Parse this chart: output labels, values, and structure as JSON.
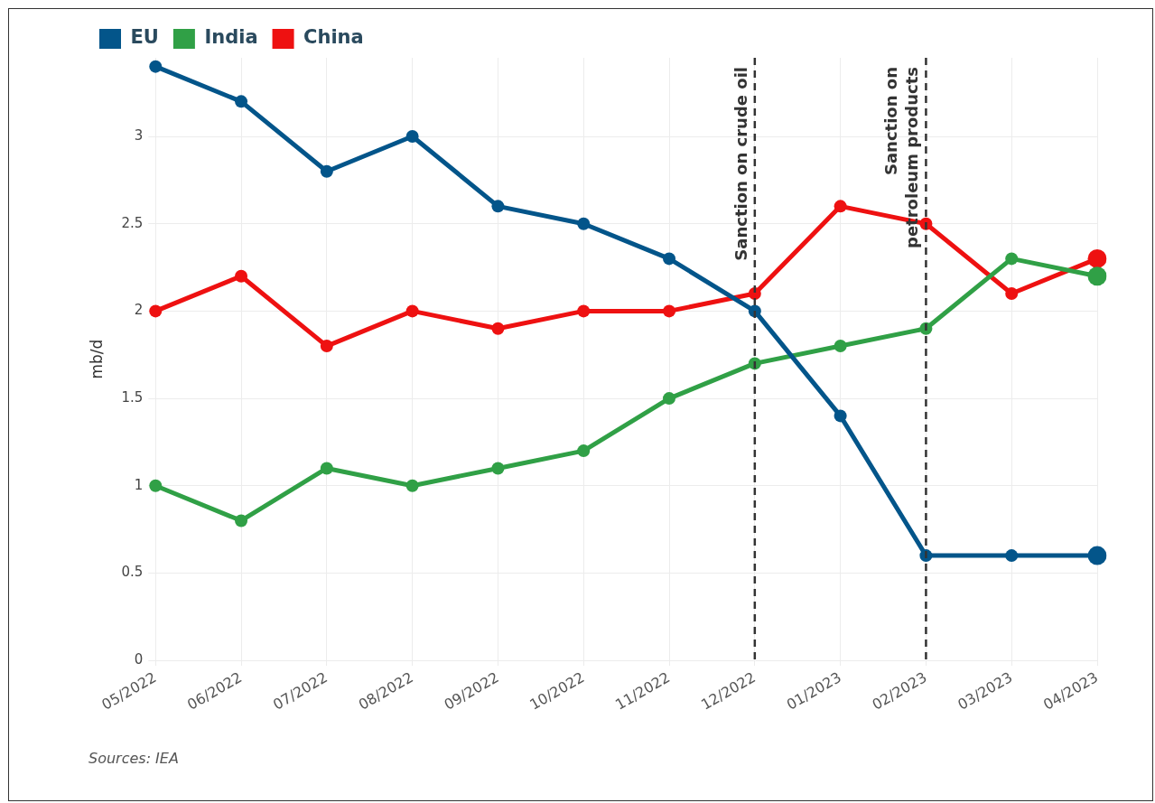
{
  "chart_data": {
    "type": "line",
    "ylabel": "mb/d",
    "categories": [
      "05/2022",
      "06/2022",
      "07/2022",
      "08/2022",
      "09/2022",
      "10/2022",
      "11/2022",
      "12/2022",
      "01/2023",
      "02/2023",
      "03/2023",
      "04/2023"
    ],
    "series": [
      {
        "name": "EU",
        "color": "#03558a",
        "values": [
          3.4,
          3.2,
          2.8,
          3.0,
          2.6,
          2.5,
          2.3,
          2.0,
          1.4,
          0.6,
          0.6,
          0.6
        ]
      },
      {
        "name": "India",
        "color": "#30a046",
        "values": [
          1.0,
          0.8,
          1.1,
          1.0,
          1.1,
          1.2,
          1.5,
          1.7,
          1.8,
          1.9,
          2.3,
          2.2
        ]
      },
      {
        "name": "China",
        "color": "#ee1111",
        "values": [
          2.0,
          2.2,
          1.8,
          2.0,
          1.9,
          2.0,
          2.0,
          2.1,
          2.6,
          2.5,
          2.1,
          2.3
        ]
      }
    ],
    "ylim": [
      0,
      3.45
    ],
    "yticks": [
      0,
      0.5,
      1,
      1.5,
      2,
      2.5,
      3
    ],
    "ref_lines": [
      {
        "axis": "x",
        "value": "12/2022",
        "label": "Sanction on crude oil",
        "color": "#333333",
        "line_style": "dashed"
      },
      {
        "axis": "x",
        "value": "02/2023",
        "label": "Sanction on petroleum products",
        "color": "#333333",
        "line_style": "dashed"
      }
    ],
    "annotations": [
      "Sources: IEA"
    ],
    "grid": true,
    "legend": "top left",
    "marker": "circle",
    "line_style": "solid"
  }
}
